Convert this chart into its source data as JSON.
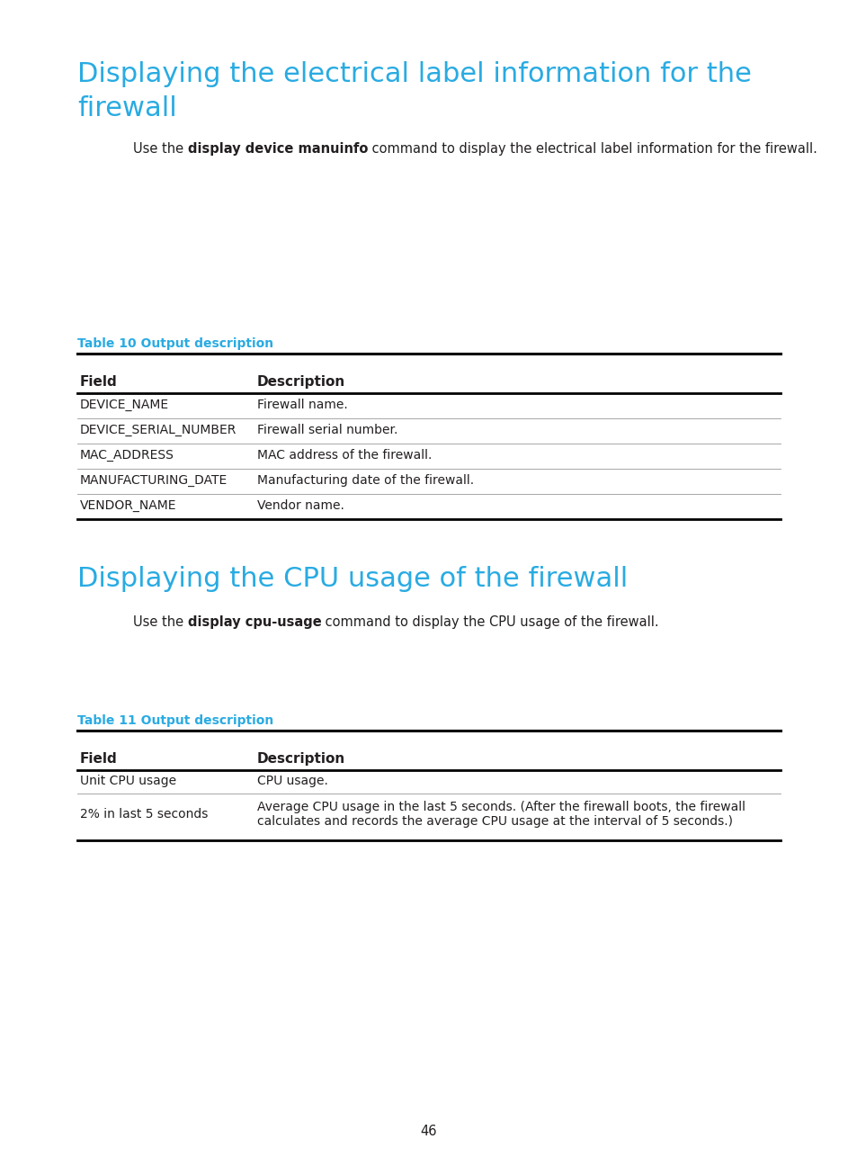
{
  "bg_color": "#ffffff",
  "heading_color": "#29abe2",
  "text_color": "#231f20",
  "section1_title_line1": "Displaying the electrical label information for the",
  "section1_title_line2": "firewall",
  "section1_body_parts": [
    {
      "text": "Use the ",
      "bold": false
    },
    {
      "text": "display device manuinfo",
      "bold": true
    },
    {
      "text": " command to display the electrical label information for the firewall.",
      "bold": false
    }
  ],
  "table1_label": "Table 10 Output description",
  "table1_headers": [
    "Field",
    "Description"
  ],
  "table1_rows": [
    [
      "DEVICE_NAME",
      "Firewall name."
    ],
    [
      "DEVICE_SERIAL_NUMBER",
      "Firewall serial number."
    ],
    [
      "MAC_ADDRESS",
      "MAC address of the firewall."
    ],
    [
      "MANUFACTURING_DATE",
      "Manufacturing date of the firewall."
    ],
    [
      "VENDOR_NAME",
      "Vendor name."
    ]
  ],
  "section2_title": "Displaying the CPU usage of the firewall",
  "section2_body_parts": [
    {
      "text": "Use the ",
      "bold": false
    },
    {
      "text": "display cpu-usage",
      "bold": true
    },
    {
      "text": " command to display the CPU usage of the firewall.",
      "bold": false
    }
  ],
  "table2_label": "Table 11 Output description",
  "table2_headers": [
    "Field",
    "Description"
  ],
  "table2_rows": [
    [
      "Unit CPU usage",
      "CPU usage."
    ],
    [
      "2% in last 5 seconds",
      "Average CPU usage in the last 5 seconds. (After the firewall boots, the firewall\ncalculates and records the average CPU usage at the interval of 5 seconds.)"
    ]
  ],
  "page_number": "46"
}
